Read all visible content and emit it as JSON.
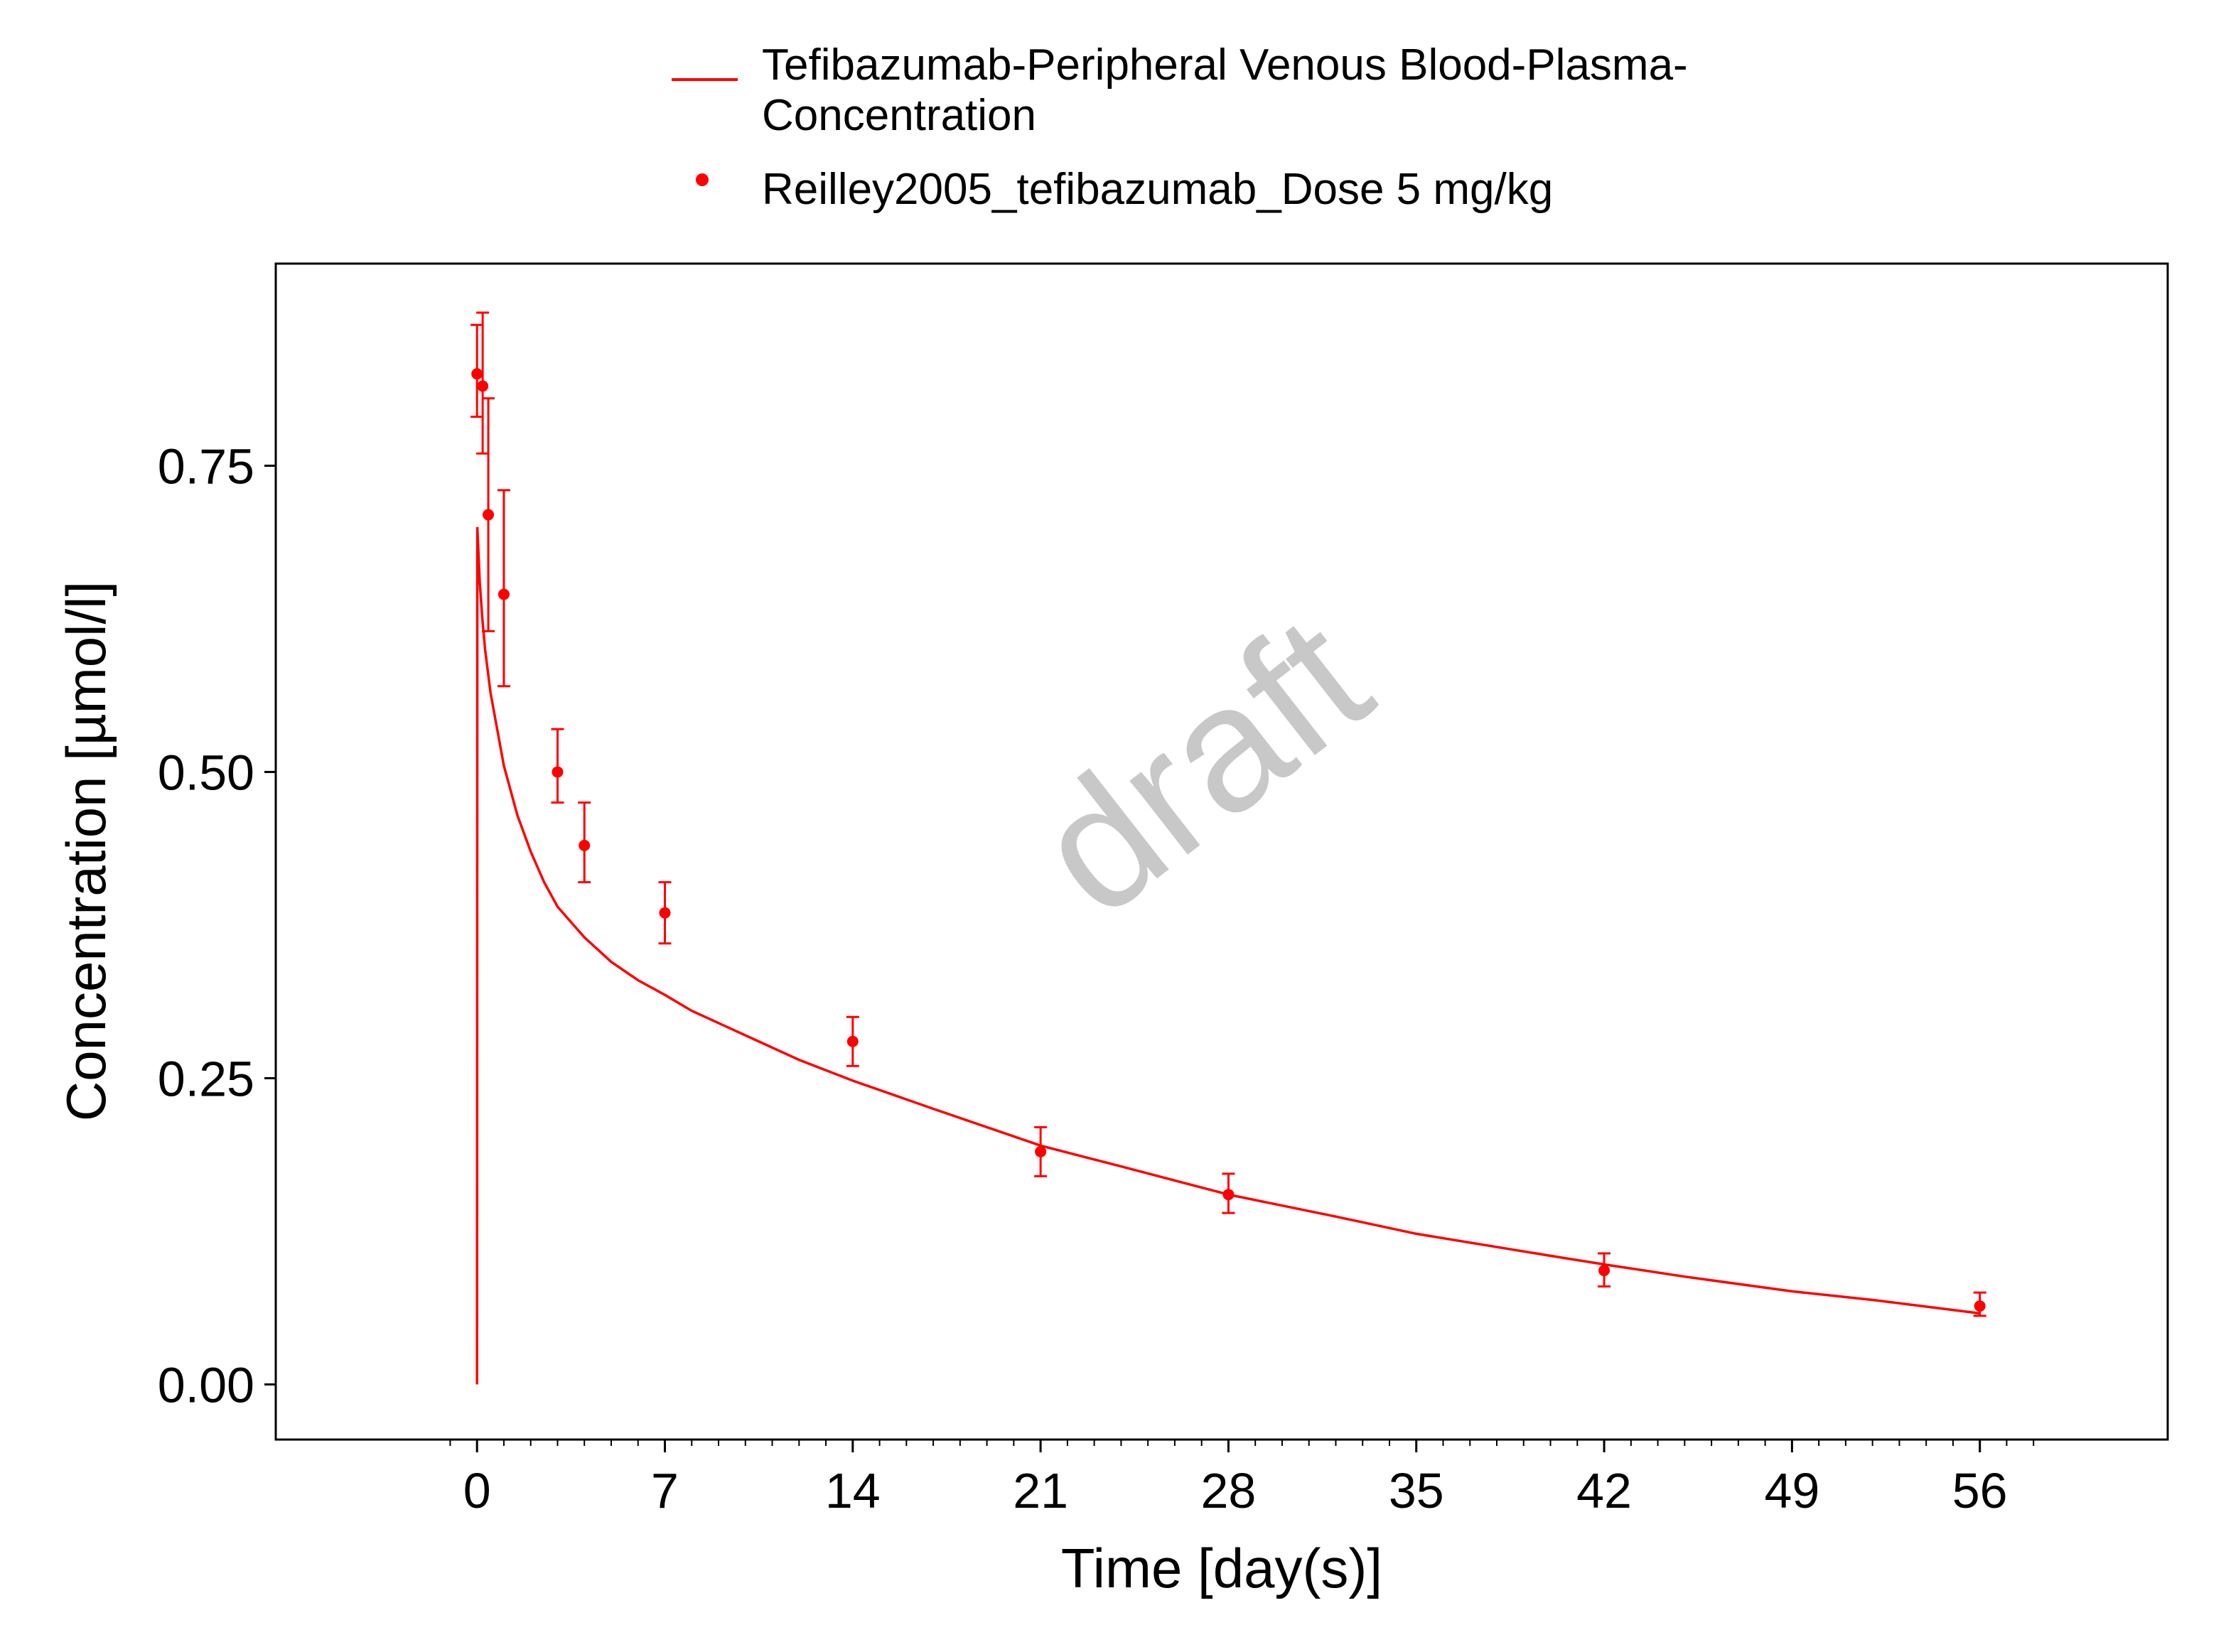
{
  "chart_data": {
    "type": "line",
    "xlabel": "Time [day(s)]",
    "ylabel": "Concentration [µmol/l]",
    "xlim": [
      -7.5,
      63
    ],
    "ylim": [
      -0.045,
      0.915
    ],
    "x_ticks": [
      0,
      7,
      14,
      21,
      28,
      35,
      42,
      49,
      56
    ],
    "x_tick_labels": [
      "0",
      "7",
      "14",
      "21",
      "28",
      "35",
      "42",
      "49",
      "56"
    ],
    "y_ticks": [
      0,
      0.25,
      0.5,
      0.75
    ],
    "y_tick_labels": [
      "0.00",
      "0.25",
      "0.50",
      "0.75"
    ],
    "x_minor_step": 1,
    "grid": false,
    "legend_position": "top-center",
    "watermark": "draft",
    "color": "#ff0000",
    "series": [
      {
        "name": "Tefibazumab-Peripheral Venous Blood-Plasma-Concentration",
        "legend_lines": [
          "Tefibazumab-Peripheral Venous Blood-Plasma-",
          "Concentration"
        ],
        "kind": "line",
        "x": [
          0,
          0.01,
          0.05,
          0.1,
          0.2,
          0.3,
          0.5,
          0.75,
          1,
          1.5,
          2,
          2.5,
          3,
          4,
          5,
          6,
          7,
          8,
          10,
          12,
          14,
          17,
          21,
          24,
          28,
          32,
          35,
          40,
          42,
          45,
          49,
          52,
          56
        ],
        "y": [
          0,
          0.7,
          0.68,
          0.655,
          0.625,
          0.6,
          0.565,
          0.535,
          0.505,
          0.465,
          0.435,
          0.41,
          0.39,
          0.365,
          0.345,
          0.33,
          0.318,
          0.305,
          0.285,
          0.265,
          0.248,
          0.225,
          0.195,
          0.178,
          0.155,
          0.137,
          0.123,
          0.105,
          0.098,
          0.088,
          0.076,
          0.069,
          0.058
        ]
      },
      {
        "name": "Reilley2005_tefibazumab_Dose 5 mg/kg",
        "kind": "points",
        "points": [
          {
            "x": 0.0,
            "y": 0.825,
            "err_low": 0.79,
            "err_high": 0.865
          },
          {
            "x": 0.21,
            "y": 0.815,
            "err_low": 0.76,
            "err_high": 0.875
          },
          {
            "x": 0.42,
            "y": 0.71,
            "err_low": 0.615,
            "err_high": 0.805
          },
          {
            "x": 1.0,
            "y": 0.645,
            "err_low": 0.57,
            "err_high": 0.73
          },
          {
            "x": 3.0,
            "y": 0.5,
            "err_low": 0.475,
            "err_high": 0.535
          },
          {
            "x": 4.0,
            "y": 0.44,
            "err_low": 0.41,
            "err_high": 0.475
          },
          {
            "x": 7.0,
            "y": 0.385,
            "err_low": 0.36,
            "err_high": 0.41
          },
          {
            "x": 14.0,
            "y": 0.28,
            "err_low": 0.26,
            "err_high": 0.3
          },
          {
            "x": 21.0,
            "y": 0.19,
            "err_low": 0.17,
            "err_high": 0.21
          },
          {
            "x": 28.0,
            "y": 0.155,
            "err_low": 0.14,
            "err_high": 0.172
          },
          {
            "x": 42.0,
            "y": 0.093,
            "err_low": 0.08,
            "err_high": 0.107
          },
          {
            "x": 56.0,
            "y": 0.064,
            "err_low": 0.056,
            "err_high": 0.075
          }
        ]
      }
    ]
  }
}
